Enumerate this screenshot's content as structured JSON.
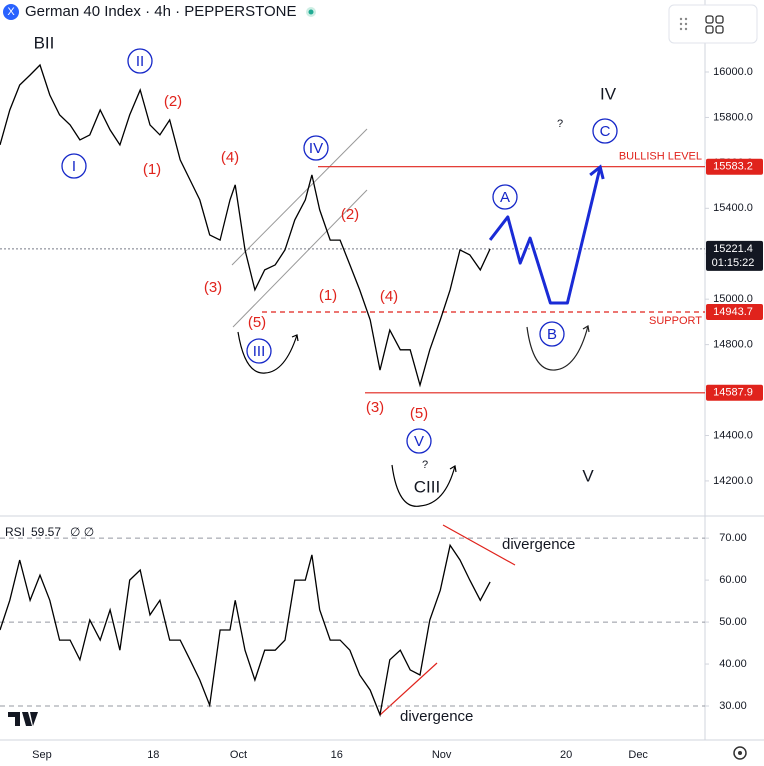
{
  "chart_data": [
    {
      "type": "line",
      "title": "German 40 Index · 4h · PEPPERSTONE",
      "color": "#000000",
      "x": [
        -5.4,
        -3.9,
        -2.4,
        -0.8,
        0.7,
        2.2,
        3.7,
        5.3,
        6.8,
        8.3,
        9.9,
        11.4,
        12.9,
        14.4,
        16.0,
        17.5,
        19.0,
        20.5,
        22.1,
        23.6,
        25.1,
        26.6,
        28.2,
        29.7,
        30.5,
        32.0,
        33.5,
        35.0,
        36.6,
        38.1,
        39.6,
        41.2,
        42.2,
        43.4,
        45.0,
        46.5,
        48.0,
        49.5,
        51.1,
        52.6,
        54.1,
        55.7,
        57.2,
        58.7,
        60.2,
        61.8,
        63.3,
        64.8,
        66.3,
        67.9,
        69.4
      ],
      "values": [
        15679,
        15833,
        15943,
        15987,
        16031,
        15899,
        15811,
        15767,
        15701,
        15723,
        15833,
        15745,
        15679,
        15811,
        15921,
        15767,
        15723,
        15789,
        15613,
        15525,
        15437,
        15283,
        15260,
        15437,
        15503,
        15217,
        15041,
        15129,
        15151,
        15217,
        15349,
        15437,
        15547,
        15393,
        15260,
        15260,
        15151,
        15041,
        14909,
        14688,
        14864,
        14777,
        14777,
        14622,
        14777,
        14909,
        15041,
        15217,
        15195,
        15129,
        15221.4
      ],
      "xlim": [
        -5.4,
        102.2
      ],
      "ylim": [
        14050,
        16317
      ],
      "xticks": [
        {
          "value": 1,
          "label": "Sep"
        },
        18,
        {
          "value": 31,
          "label": "Oct"
        },
        {
          "value": 46,
          "label": "16"
        },
        {
          "value": 62,
          "label": "Nov"
        },
        {
          "value": 81,
          "label": "20"
        },
        {
          "value": 92,
          "label": "Dec"
        }
      ],
      "yticks": [
        {
          "value": 14200,
          "label": "14200.0"
        },
        {
          "value": 14400,
          "label": "14400.0"
        },
        {
          "value": 14600,
          "label": "14600.0"
        },
        {
          "value": 14800,
          "label": "14800.0"
        },
        {
          "value": 15000,
          "label": "15000.0"
        },
        {
          "value": 15200,
          "label": "15200.0"
        },
        {
          "value": 15400,
          "label": "15400.0"
        },
        {
          "value": 15600,
          "label": "15600.0"
        },
        {
          "value": 15800,
          "label": "15800.0"
        },
        {
          "value": 16000,
          "label": "16000.0"
        }
      ],
      "levels": [
        {
          "value": 15583.2,
          "label": "BULLISH LEVEL",
          "dashed": false
        },
        {
          "value": 14943.7,
          "label": "SUPPORT",
          "dashed": true
        },
        {
          "value": 14587.9,
          "dashed": false
        }
      ],
      "countdown": "01:15:22",
      "projection": {
        "color": "#1a2bd6",
        "x": [
          69.4,
          72.1,
          74.0,
          75.5,
          78.6,
          81.2,
          86.2
        ],
        "values": [
          15261,
          15362,
          15159,
          15269,
          14983,
          14983,
          15582
        ]
      },
      "annotations": [
        "BII",
        "I",
        "II",
        "(2)",
        "(1)",
        "(4)",
        "(3)",
        "(5)",
        "III",
        "IV",
        "(2)",
        "(1)",
        "(4)",
        "(3)",
        "(5)",
        "V",
        "?",
        "CIII",
        "A",
        "B",
        "C",
        "?",
        "IV",
        "V"
      ]
    },
    {
      "type": "line",
      "title": "RSI",
      "params": "∅  ∅",
      "color": "#000000",
      "x": [
        -5.4,
        -3.9,
        -2.4,
        -0.8,
        0.7,
        2.2,
        3.7,
        5.3,
        6.8,
        8.3,
        9.9,
        11.4,
        12.9,
        14.4,
        16.0,
        17.5,
        19.0,
        20.5,
        22.1,
        23.6,
        25.1,
        26.6,
        28.2,
        29.7,
        30.5,
        32.0,
        33.5,
        35.0,
        36.6,
        38.1,
        39.6,
        41.2,
        42.2,
        43.4,
        45.0,
        46.5,
        48.0,
        49.5,
        51.1,
        52.6,
        54.1,
        55.7,
        57.2,
        58.7,
        60.2,
        61.8,
        63.3,
        64.8,
        66.3,
        67.9,
        69.4
      ],
      "values": [
        48.1,
        55.2,
        64.8,
        55.2,
        61.2,
        55.2,
        45.7,
        45.7,
        41.0,
        50.5,
        45.7,
        52.9,
        43.3,
        60.0,
        62.4,
        51.7,
        55.2,
        45.7,
        45.7,
        41.0,
        36.2,
        30.2,
        48.1,
        48.1,
        55.2,
        43.3,
        36.2,
        43.3,
        43.3,
        45.7,
        60.0,
        60.0,
        66.0,
        52.9,
        45.7,
        45.7,
        43.3,
        37.4,
        33.8,
        27.9,
        41.0,
        43.3,
        38.6,
        37.4,
        50.5,
        57.6,
        68.3,
        64.8,
        60.0,
        55.2,
        59.57
      ],
      "ylim": [
        21.9,
        74.8
      ],
      "yticks": [
        {
          "value": 30,
          "label": "30.00"
        },
        {
          "value": 40,
          "label": "40.00"
        },
        {
          "value": 50,
          "label": "50.00"
        },
        {
          "value": 60,
          "label": "60.00"
        },
        {
          "value": 70,
          "label": "70.00"
        }
      ],
      "bands": [
        70,
        50,
        30
      ],
      "annotations": [
        "divergence",
        "divergence"
      ]
    }
  ]
}
